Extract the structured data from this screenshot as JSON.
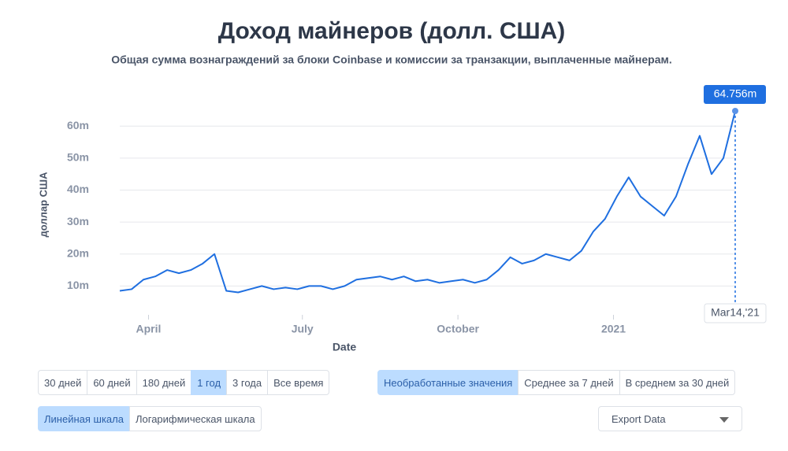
{
  "chart_data": {
    "type": "line",
    "title": "Доход майнеров (долл. США)",
    "subtitle": "Общая сумма вознаграждений за блоки Coinbase и комиссии за транзакции, выплаченные майнерам.",
    "x_label": "Date",
    "y_label": "доллар США",
    "x": [
      "2020-03-15",
      "2020-03-22",
      "2020-03-29",
      "2020-04-05",
      "2020-04-12",
      "2020-04-19",
      "2020-04-26",
      "2020-05-03",
      "2020-05-10",
      "2020-05-17",
      "2020-05-24",
      "2020-05-31",
      "2020-06-07",
      "2020-06-14",
      "2020-06-21",
      "2020-06-28",
      "2020-07-05",
      "2020-07-12",
      "2020-07-19",
      "2020-07-26",
      "2020-08-02",
      "2020-08-09",
      "2020-08-16",
      "2020-08-23",
      "2020-08-30",
      "2020-09-06",
      "2020-09-13",
      "2020-09-20",
      "2020-09-27",
      "2020-10-04",
      "2020-10-11",
      "2020-10-18",
      "2020-10-25",
      "2020-11-01",
      "2020-11-08",
      "2020-11-15",
      "2020-11-22",
      "2020-11-29",
      "2020-12-06",
      "2020-12-13",
      "2020-12-20",
      "2020-12-27",
      "2021-01-03",
      "2021-01-10",
      "2021-01-17",
      "2021-01-24",
      "2021-01-31",
      "2021-02-07",
      "2021-02-14",
      "2021-02-21",
      "2021-02-28",
      "2021-03-07",
      "2021-03-14"
    ],
    "series": [
      {
        "name": "Доход майнеров",
        "color": "#1f6fe0",
        "values": [
          8.5,
          9,
          12,
          13,
          15,
          14,
          15,
          17,
          20,
          8.5,
          8,
          9,
          10,
          9,
          9.5,
          9,
          10,
          10,
          9,
          10,
          12,
          12.5,
          13,
          12,
          13,
          11.5,
          12,
          11,
          11.5,
          12,
          11,
          12,
          15,
          19,
          17,
          18,
          20,
          19,
          18,
          21,
          27,
          31,
          38,
          44,
          38,
          35,
          32,
          38,
          48,
          57,
          45,
          50,
          64.756
        ]
      }
    ],
    "xlim": [
      "2020-03-15",
      "2021-03-14"
    ],
    "xticks": [
      {
        "value": "2020-04-01",
        "label": "April"
      },
      {
        "value": "2020-07-01",
        "label": "July"
      },
      {
        "value": "2020-10-01",
        "label": "October"
      },
      {
        "value": "2021-01-01",
        "label": "2021"
      }
    ],
    "ylim": [
      0,
      65
    ],
    "yticks": [
      {
        "value": 10,
        "label": "10m"
      },
      {
        "value": 20,
        "label": "20m"
      },
      {
        "value": 30,
        "label": "30m"
      },
      {
        "value": 40,
        "label": "40m"
      },
      {
        "value": 50,
        "label": "50m"
      },
      {
        "value": 60,
        "label": "60m"
      }
    ],
    "grid": true,
    "highlight": {
      "x_label": "Mar14,'21",
      "value_label": "64.756m"
    }
  },
  "controls": {
    "range": [
      "30 дней",
      "60 дней",
      "180 дней",
      "1 год",
      "3 года",
      "Все время"
    ],
    "range_active": 3,
    "smoothing": [
      "Необработанные значения",
      "Среднее за 7 дней",
      "В среднем за 30 дней"
    ],
    "smoothing_active": 0,
    "scale": [
      "Линейная шкала",
      "Логарифмическая шкала"
    ],
    "scale_active": 0,
    "export": "Export Data"
  }
}
